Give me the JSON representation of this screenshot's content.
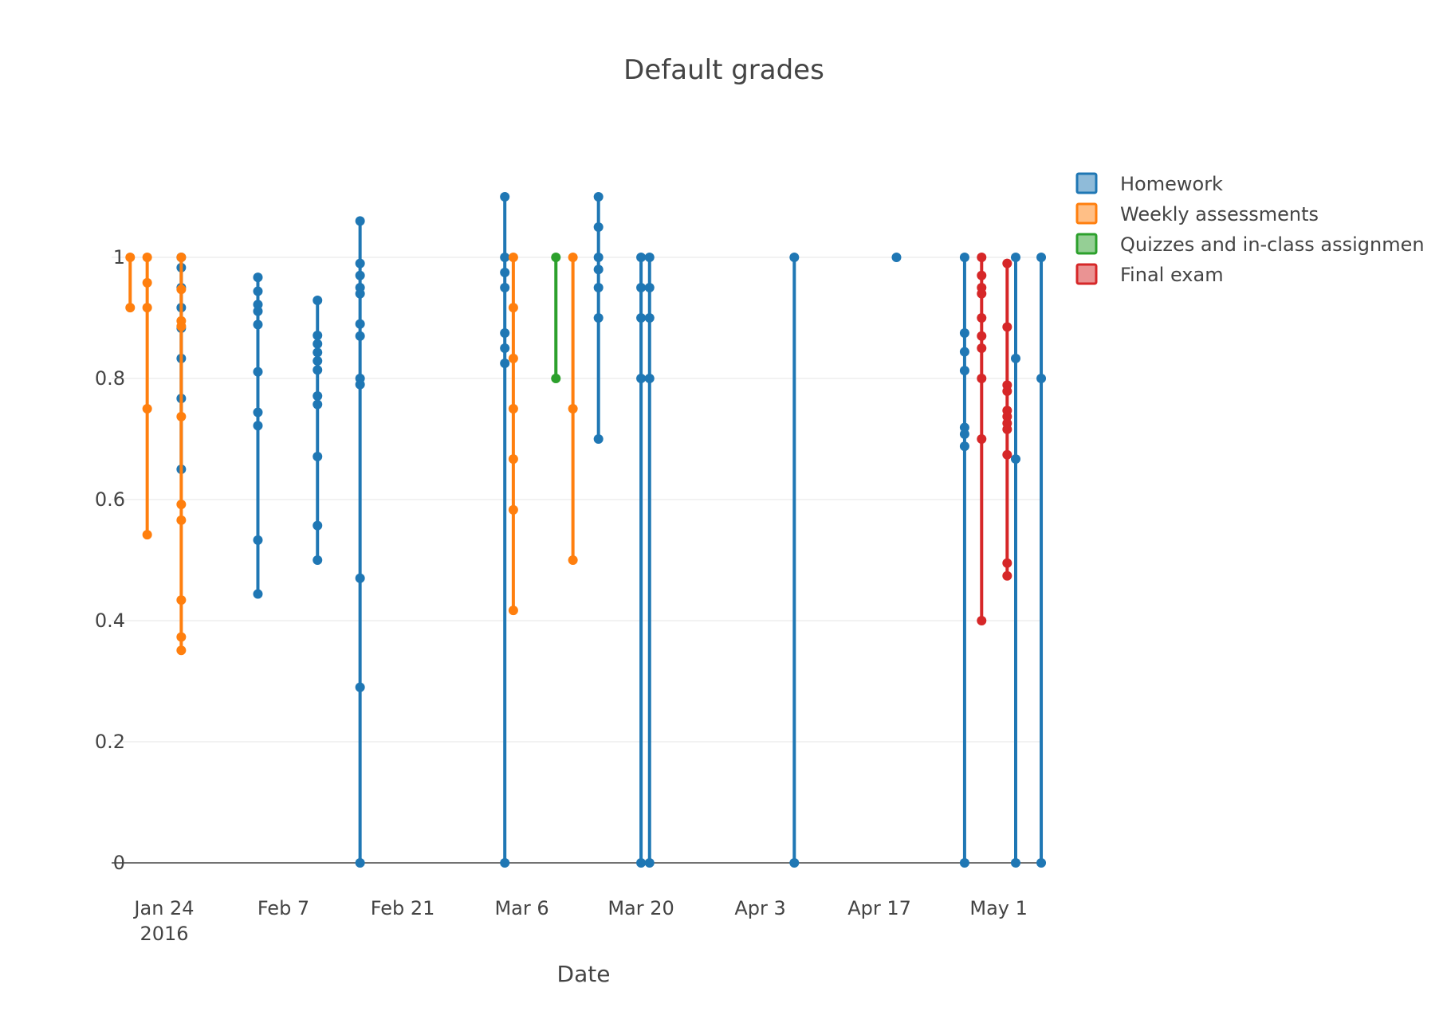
{
  "chart_data": {
    "type": "scatter",
    "title": "Default grades",
    "xlabel": "Date",
    "ylabel": "",
    "x_axis": {
      "type": "date",
      "range": [
        "2016-01-20",
        "2016-05-03"
      ],
      "ticks": [
        {
          "date": "2016-01-24",
          "label": "Jan 24",
          "sublabel": "2016"
        },
        {
          "date": "2016-02-07",
          "label": "Feb 7"
        },
        {
          "date": "2016-02-21",
          "label": "Feb 21"
        },
        {
          "date": "2016-03-06",
          "label": "Mar 6"
        },
        {
          "date": "2016-03-20",
          "label": "Mar 20"
        },
        {
          "date": "2016-04-03",
          "label": "Apr 3"
        },
        {
          "date": "2016-04-17",
          "label": "Apr 17"
        },
        {
          "date": "2016-05-01",
          "label": "May 1"
        }
      ]
    },
    "y_axis": {
      "range": [
        -0.05,
        1.12
      ],
      "ticks": [
        {
          "value": 0,
          "label": "0"
        },
        {
          "value": 0.2,
          "label": "0.2"
        },
        {
          "value": 0.4,
          "label": "0.4"
        },
        {
          "value": 0.6,
          "label": "0.6"
        },
        {
          "value": 0.8,
          "label": "0.8"
        },
        {
          "value": 1,
          "label": "1"
        }
      ],
      "grid": true
    },
    "legend": {
      "position": "top-right"
    },
    "series": [
      {
        "name": "Homework",
        "color": "#1f77b4",
        "groups": [
          {
            "date": "2016-01-26",
            "values": [
              1.0,
              0.983,
              0.95,
              0.917,
              0.883,
              0.833,
              0.767,
              0.65
            ]
          },
          {
            "date": "2016-02-04",
            "values": [
              0.967,
              0.944,
              0.922,
              0.911,
              0.889,
              0.811,
              0.744,
              0.722,
              0.533,
              0.444
            ]
          },
          {
            "date": "2016-02-11",
            "values": [
              0.929,
              0.871,
              0.857,
              0.843,
              0.829,
              0.814,
              0.771,
              0.757,
              0.671,
              0.557,
              0.5
            ]
          },
          {
            "date": "2016-02-16",
            "values": [
              1.06,
              0.99,
              0.97,
              0.95,
              0.94,
              0.89,
              0.87,
              0.8,
              0.79,
              0.47,
              0.29,
              0.0
            ]
          },
          {
            "date": "2016-03-04",
            "values": [
              1.1,
              1.0,
              0.975,
              0.95,
              0.875,
              0.85,
              0.825,
              0.0
            ]
          },
          {
            "date": "2016-03-15",
            "values": [
              1.1,
              1.05,
              1.0,
              0.98,
              0.95,
              0.9,
              0.7
            ]
          },
          {
            "date": "2016-03-20",
            "values": [
              1.0,
              0.95,
              0.9,
              0.8,
              0.0
            ]
          },
          {
            "date": "2016-03-21",
            "values": [
              1.0,
              0.95,
              0.9,
              0.8,
              0.0
            ]
          },
          {
            "date": "2016-04-07",
            "values": [
              1.0,
              0.0
            ]
          },
          {
            "date": "2016-04-19",
            "values": [
              1.0
            ]
          },
          {
            "date": "2016-04-27",
            "values": [
              1.0,
              0.875,
              0.844,
              0.813,
              0.719,
              0.708,
              0.688,
              0.0
            ]
          },
          {
            "date": "2016-05-03",
            "values": [
              1.0,
              0.833,
              0.667,
              0.0
            ]
          },
          {
            "date": "2016-05-06",
            "values": [
              1.0,
              0.8,
              0.0
            ]
          }
        ]
      },
      {
        "name": "Weekly assessments",
        "color": "#ff7f0e",
        "groups": [
          {
            "date": "2016-01-20",
            "values": [
              1.0,
              0.917
            ]
          },
          {
            "date": "2016-01-22",
            "values": [
              1.0,
              0.958,
              0.917,
              0.75,
              0.542
            ]
          },
          {
            "date": "2016-01-26",
            "values": [
              1.0,
              0.947,
              0.895,
              0.886,
              0.737,
              0.592,
              0.566,
              0.434,
              0.373,
              0.351
            ]
          },
          {
            "date": "2016-03-05",
            "values": [
              1.0,
              0.917,
              0.833,
              0.75,
              0.667,
              0.583,
              0.417
            ]
          },
          {
            "date": "2016-03-12",
            "values": [
              1.0,
              0.75,
              0.5
            ]
          }
        ]
      },
      {
        "name": "Quizzes and in-class assignmen",
        "color": "#2ca02c",
        "groups": [
          {
            "date": "2016-03-10",
            "values": [
              1.0,
              0.8
            ]
          }
        ]
      },
      {
        "name": "Final exam",
        "color": "#d62728",
        "groups": [
          {
            "date": "2016-04-29",
            "values": [
              1.0,
              0.97,
              0.95,
              0.94,
              0.9,
              0.87,
              0.85,
              0.8,
              0.7,
              0.4
            ]
          },
          {
            "date": "2016-05-02",
            "values": [
              0.99,
              0.885,
              0.789,
              0.779,
              0.747,
              0.737,
              0.726,
              0.716,
              0.674,
              0.495,
              0.474
            ]
          }
        ]
      }
    ]
  }
}
